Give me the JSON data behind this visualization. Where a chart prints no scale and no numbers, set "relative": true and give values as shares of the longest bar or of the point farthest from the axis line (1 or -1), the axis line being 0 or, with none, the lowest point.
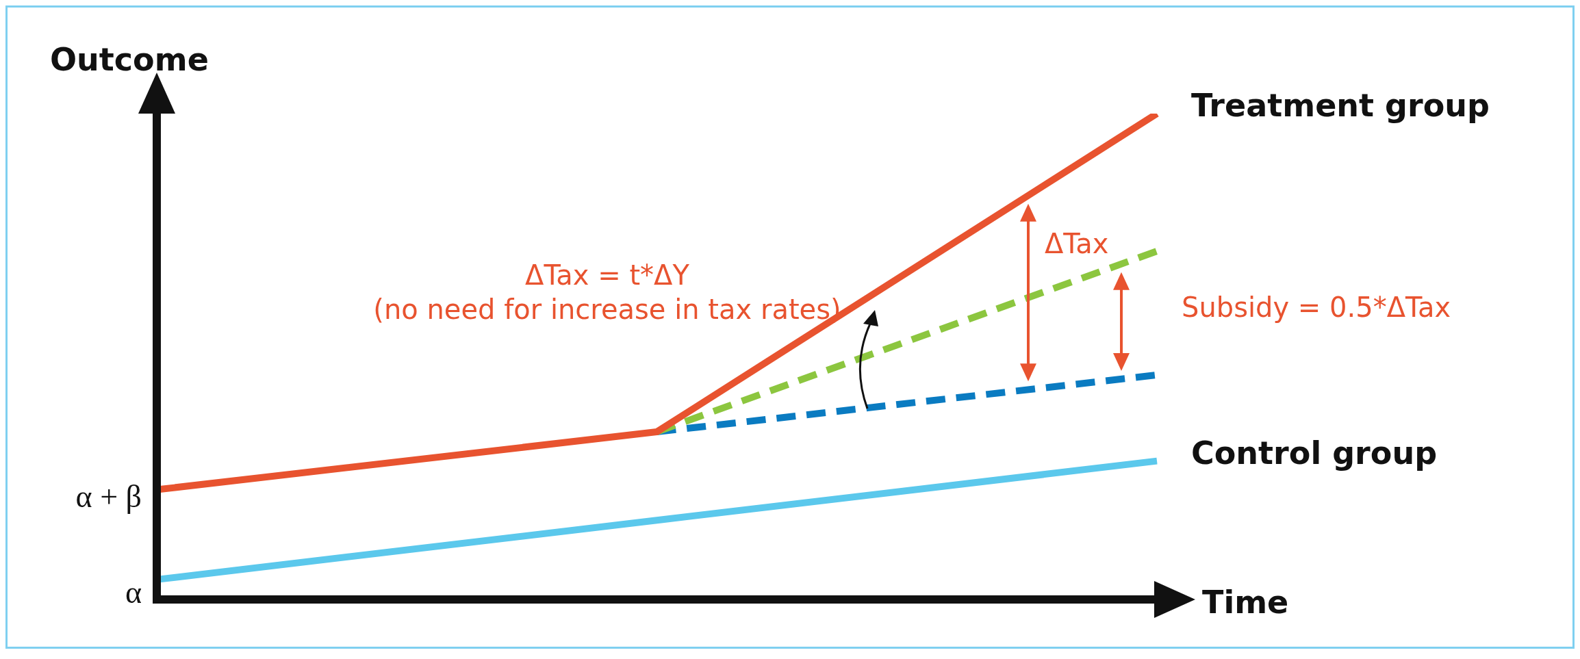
{
  "chart_data": {
    "type": "line",
    "relative": true,
    "xlabel": "Time",
    "ylabel": "Outcome",
    "legend": false,
    "marker": "none",
    "categories": [
      null,
      null,
      null
    ],
    "series": [
      {
        "name": "Treatment group",
        "color": "#e8532f",
        "values": [
          0.226,
          0.345,
          1
        ]
      },
      {
        "name": "Control group",
        "color": "#5bc8ec",
        "values": [
          0.041,
          0.163,
          0.285
        ]
      },
      {
        "color": "#8cc63f",
        "values": [
          null,
          0.345,
          0.717
        ],
        "line_style": "dashed"
      },
      {
        "color": "#0a7bc1",
        "values": [
          null,
          0.345,
          0.462
        ],
        "line_style": "dashed"
      }
    ],
    "annotations": [
      "ΔTax = t*ΔY",
      "(no need for increase in tax rates)",
      "ΔTax",
      "Subsidy = 0.5*ΔTax",
      "α",
      "α + β"
    ]
  }
}
